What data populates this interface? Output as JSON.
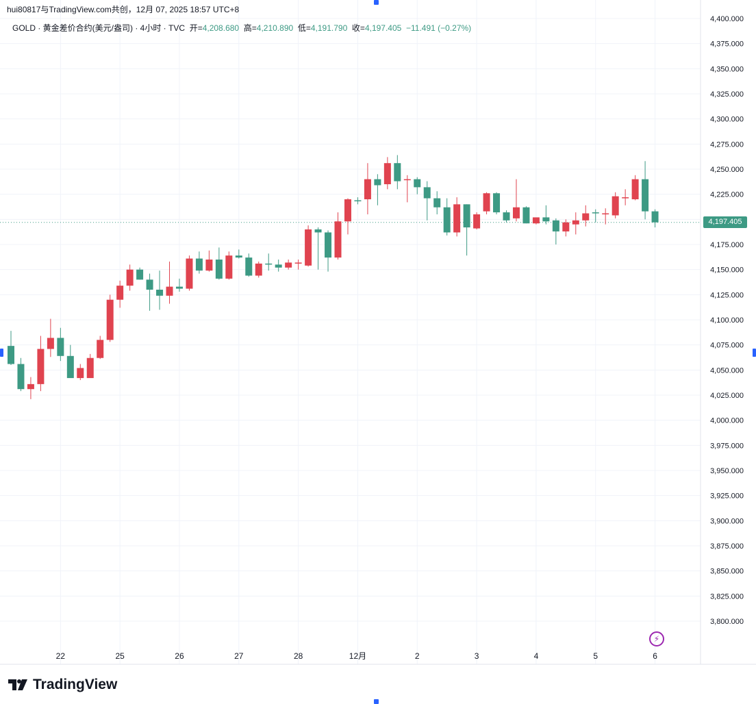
{
  "header": {
    "attribution": "hui80817与TradingView.com共创，12月 07, 2025 18:57 UTC+8"
  },
  "ohlc": {
    "symbol": "GOLD · 黄金差价合约(美元/盎司) · 4小时 · TVC",
    "open_label": "开=",
    "open": "4,208.680",
    "high_label": "高=",
    "high": "4,210.890",
    "low_label": "低=",
    "low": "4,191.790",
    "close_label": "收=",
    "close": "4,197.405",
    "change": "−11.491 (−0.27%)"
  },
  "last_price_tag": "4,197.405",
  "logo_text": "TradingView",
  "colors": {
    "up": "#e0434f",
    "down": "#3d9a84",
    "grid": "#f0f3fa",
    "axis_text": "#131722",
    "handle": "#2962ff",
    "alert": "#9c27b0"
  },
  "chart_data": {
    "type": "candlestick",
    "interval": "4h",
    "y_axis": {
      "min": 3787.5,
      "max": 4400.0,
      "step": 25,
      "tick_labels": [
        "4,400.000",
        "4,375.000",
        "4,350.000",
        "4,325.000",
        "4,300.000",
        "4,275.000",
        "4,250.000",
        "4,225.000",
        "4,200.000",
        "4,175.000",
        "4,150.000",
        "4,125.000",
        "4,100.000",
        "4,075.000",
        "4,050.000",
        "4,025.000",
        "4,000.000",
        "3,975.000",
        "3,950.000",
        "3,925.000",
        "3,900.000",
        "3,875.000",
        "3,850.000",
        "3,825.000",
        "3,800.000"
      ],
      "tick_values": [
        4400,
        4375,
        4350,
        4325,
        4300,
        4275,
        4250,
        4225,
        4200,
        4175,
        4150,
        4125,
        4100,
        4075,
        4050,
        4025,
        4000,
        3975,
        3950,
        3925,
        3900,
        3875,
        3850,
        3825,
        3800
      ]
    },
    "x_axis": {
      "labels": [
        "22",
        "25",
        "26",
        "27",
        "28",
        "12月",
        "2",
        "3",
        "4",
        "5",
        "6"
      ],
      "label_bar_index": [
        5,
        11,
        17,
        23,
        29,
        35,
        41,
        47,
        53,
        59,
        65
      ]
    },
    "candles": [
      {
        "o": 4074,
        "h": 4089,
        "l": 4055,
        "c": 4056
      },
      {
        "o": 4056,
        "h": 4062,
        "l": 4029,
        "c": 4031
      },
      {
        "o": 4031,
        "h": 4043,
        "l": 4021,
        "c": 4036
      },
      {
        "o": 4036,
        "h": 4084,
        "l": 4029,
        "c": 4071
      },
      {
        "o": 4071,
        "h": 4101,
        "l": 4063,
        "c": 4082
      },
      {
        "o": 4082,
        "h": 4092,
        "l": 4059,
        "c": 4064
      },
      {
        "o": 4064,
        "h": 4075,
        "l": 4043,
        "c": 4042
      },
      {
        "o": 4042,
        "h": 4056,
        "l": 4040,
        "c": 4052
      },
      {
        "o": 4042,
        "h": 4066,
        "l": 4048,
        "c": 4062
      },
      {
        "o": 4062,
        "h": 4084,
        "l": 4061,
        "c": 4080
      },
      {
        "o": 4080,
        "h": 4125,
        "l": 4078,
        "c": 4120
      },
      {
        "o": 4120,
        "h": 4139,
        "l": 4112,
        "c": 4134
      },
      {
        "o": 4134,
        "h": 4155,
        "l": 4129,
        "c": 4150
      },
      {
        "o": 4150,
        "h": 4152,
        "l": 4140,
        "c": 4140
      },
      {
        "o": 4140,
        "h": 4146,
        "l": 4109,
        "c": 4130
      },
      {
        "o": 4130,
        "h": 4149,
        "l": 4110,
        "c": 4124
      },
      {
        "o": 4124,
        "h": 4158,
        "l": 4116,
        "c": 4133
      },
      {
        "o": 4133,
        "h": 4141,
        "l": 4128,
        "c": 4131
      },
      {
        "o": 4131,
        "h": 4164,
        "l": 4129,
        "c": 4161
      },
      {
        "o": 4161,
        "h": 4168,
        "l": 4146,
        "c": 4149
      },
      {
        "o": 4149,
        "h": 4169,
        "l": 4148,
        "c": 4160
      },
      {
        "o": 4160,
        "h": 4172,
        "l": 4140,
        "c": 4141
      },
      {
        "o": 4141,
        "h": 4168,
        "l": 4140,
        "c": 4164
      },
      {
        "o": 4164,
        "h": 4170,
        "l": 4161,
        "c": 4162
      },
      {
        "o": 4162,
        "h": 4166,
        "l": 4143,
        "c": 4144
      },
      {
        "o": 4144,
        "h": 4158,
        "l": 4142,
        "c": 4156
      },
      {
        "o": 4156,
        "h": 4166,
        "l": 4149,
        "c": 4155
      },
      {
        "o": 4155,
        "h": 4160,
        "l": 4148,
        "c": 4152
      },
      {
        "o": 4152,
        "h": 4160,
        "l": 4150,
        "c": 4157
      },
      {
        "o": 4156,
        "h": 4160,
        "l": 4150,
        "c": 4157
      },
      {
        "o": 4154,
        "h": 4194,
        "l": 4153,
        "c": 4190
      },
      {
        "o": 4190,
        "h": 4192,
        "l": 4150,
        "c": 4187
      },
      {
        "o": 4187,
        "h": 4189,
        "l": 4148,
        "c": 4162
      },
      {
        "o": 4162,
        "h": 4207,
        "l": 4160,
        "c": 4198
      },
      {
        "o": 4198,
        "h": 4221,
        "l": 4185,
        "c": 4220
      },
      {
        "o": 4219,
        "h": 4222,
        "l": 4215,
        "c": 4218
      },
      {
        "o": 4220,
        "h": 4256,
        "l": 4205,
        "c": 4240
      },
      {
        "o": 4240,
        "h": 4245,
        "l": 4214,
        "c": 4234
      },
      {
        "o": 4235,
        "h": 4262,
        "l": 4230,
        "c": 4256
      },
      {
        "o": 4256,
        "h": 4264,
        "l": 4230,
        "c": 4238
      },
      {
        "o": 4240,
        "h": 4244,
        "l": 4217,
        "c": 4240
      },
      {
        "o": 4240,
        "h": 4242,
        "l": 4225,
        "c": 4232
      },
      {
        "o": 4232,
        "h": 4238,
        "l": 4199,
        "c": 4221
      },
      {
        "o": 4221,
        "h": 4228,
        "l": 4205,
        "c": 4212
      },
      {
        "o": 4212,
        "h": 4221,
        "l": 4184,
        "c": 4187
      },
      {
        "o": 4187,
        "h": 4222,
        "l": 4183,
        "c": 4215
      },
      {
        "o": 4215,
        "h": 4215,
        "l": 4164,
        "c": 4192
      },
      {
        "o": 4191,
        "h": 4207,
        "l": 4190,
        "c": 4205
      },
      {
        "o": 4208,
        "h": 4227,
        "l": 4205,
        "c": 4226
      },
      {
        "o": 4226,
        "h": 4227,
        "l": 4205,
        "c": 4207
      },
      {
        "o": 4207,
        "h": 4209,
        "l": 4197,
        "c": 4199
      },
      {
        "o": 4201,
        "h": 4240,
        "l": 4198,
        "c": 4212
      },
      {
        "o": 4212,
        "h": 4213,
        "l": 4196,
        "c": 4196
      },
      {
        "o": 4196,
        "h": 4201,
        "l": 4195,
        "c": 4202
      },
      {
        "o": 4202,
        "h": 4214,
        "l": 4195,
        "c": 4198
      },
      {
        "o": 4199,
        "h": 4201,
        "l": 4175,
        "c": 4188
      },
      {
        "o": 4188,
        "h": 4200,
        "l": 4183,
        "c": 4197
      },
      {
        "o": 4195,
        "h": 4207,
        "l": 4185,
        "c": 4199
      },
      {
        "o": 4199,
        "h": 4214,
        "l": 4193,
        "c": 4206
      },
      {
        "o": 4207,
        "h": 4210,
        "l": 4197,
        "c": 4206
      },
      {
        "o": 4206,
        "h": 4211,
        "l": 4195,
        "c": 4206
      },
      {
        "o": 4204,
        "h": 4227,
        "l": 4201,
        "c": 4223
      },
      {
        "o": 4221,
        "h": 4230,
        "l": 4214,
        "c": 4222
      },
      {
        "o": 4220,
        "h": 4244,
        "l": 4219,
        "c": 4240
      },
      {
        "o": 4240,
        "h": 4258,
        "l": 4200,
        "c": 4208
      },
      {
        "o": 4208,
        "h": 4210,
        "l": 4192,
        "c": 4197
      }
    ]
  }
}
